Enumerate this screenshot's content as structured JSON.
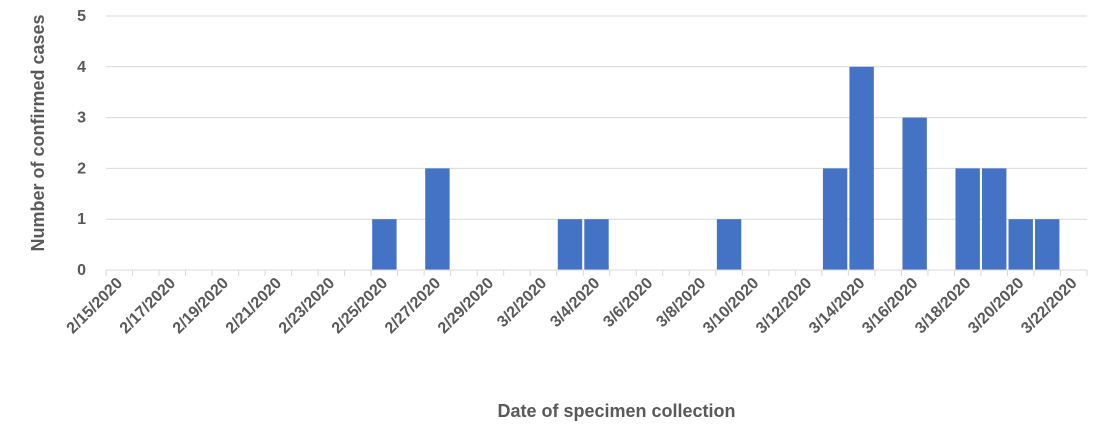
{
  "chart_data": {
    "type": "bar",
    "title": "",
    "xlabel": "Date of specimen collection",
    "ylabel": "Number of confirmed cases",
    "ylim": [
      0,
      5
    ],
    "yticks": [
      0,
      1,
      2,
      3,
      4,
      5
    ],
    "grid": true,
    "legend": "none",
    "bar_color": "#4472C4",
    "categories": [
      "2/15/2020",
      "2/16/2020",
      "2/17/2020",
      "2/18/2020",
      "2/19/2020",
      "2/20/2020",
      "2/21/2020",
      "2/22/2020",
      "2/23/2020",
      "2/24/2020",
      "2/25/2020",
      "2/26/2020",
      "2/27/2020",
      "2/28/2020",
      "2/29/2020",
      "3/1/2020",
      "3/2/2020",
      "3/3/2020",
      "3/4/2020",
      "3/5/2020",
      "3/6/2020",
      "3/7/2020",
      "3/8/2020",
      "3/9/2020",
      "3/10/2020",
      "3/11/2020",
      "3/12/2020",
      "3/13/2020",
      "3/14/2020",
      "3/15/2020",
      "3/16/2020",
      "3/17/2020",
      "3/18/2020",
      "3/19/2020",
      "3/20/2020",
      "3/21/2020",
      "3/22/2020"
    ],
    "values": [
      0,
      0,
      0,
      0,
      0,
      0,
      0,
      0,
      0,
      0,
      1,
      0,
      2,
      0,
      0,
      0,
      0,
      1,
      1,
      0,
      0,
      0,
      0,
      1,
      0,
      0,
      0,
      2,
      4,
      0,
      3,
      0,
      2,
      2,
      1,
      1,
      0
    ],
    "xtick_labels": [
      "2/15/2020",
      "2/17/2020",
      "2/19/2020",
      "2/21/2020",
      "2/23/2020",
      "2/25/2020",
      "2/27/2020",
      "2/29/2020",
      "3/2/2020",
      "3/4/2020",
      "3/6/2020",
      "3/8/2020",
      "3/10/2020",
      "3/12/2020",
      "3/14/2020",
      "3/16/2020",
      "3/18/2020",
      "3/20/2020",
      "3/22/2020"
    ]
  }
}
